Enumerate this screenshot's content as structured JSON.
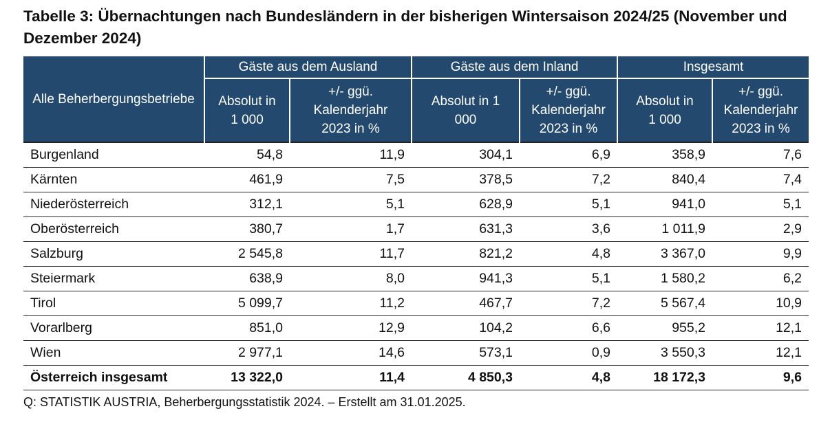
{
  "title": "Tabelle 3: Übernachtungen nach Bundesländern in der bisherigen Wintersaison 2024/25 (November und Dezember 2024)",
  "header": {
    "row_label": "Alle Beherbergungsbetriebe",
    "groups": [
      "Gäste aus dem Ausland",
      "Gäste aus dem Inland",
      "Insgesamt"
    ],
    "col_abs": "Absolut in 1 000",
    "col_pct": "+/- ggü. Kalenderjahr 2023 in %"
  },
  "rows": [
    {
      "name": "Burgenland",
      "values": [
        "54,8",
        "11,9",
        "304,1",
        "6,9",
        "358,9",
        "7,6"
      ]
    },
    {
      "name": "Kärnten",
      "values": [
        "461,9",
        "7,5",
        "378,5",
        "7,2",
        "840,4",
        "7,4"
      ]
    },
    {
      "name": "Niederösterreich",
      "values": [
        "312,1",
        "5,1",
        "628,9",
        "5,1",
        "941,0",
        "5,1"
      ]
    },
    {
      "name": "Oberösterreich",
      "values": [
        "380,7",
        "1,7",
        "631,3",
        "3,6",
        "1 011,9",
        "2,9"
      ]
    },
    {
      "name": "Salzburg",
      "values": [
        "2 545,8",
        "11,7",
        "821,2",
        "4,8",
        "3 367,0",
        "9,9"
      ]
    },
    {
      "name": "Steiermark",
      "values": [
        "638,9",
        "8,0",
        "941,3",
        "5,1",
        "1 580,2",
        "6,2"
      ]
    },
    {
      "name": "Tirol",
      "values": [
        "5 099,7",
        "11,2",
        "467,7",
        "7,2",
        "5 567,4",
        "10,9"
      ]
    },
    {
      "name": "Vorarlberg",
      "values": [
        "851,0",
        "12,9",
        "104,2",
        "6,6",
        "955,2",
        "12,1"
      ]
    },
    {
      "name": "Wien",
      "values": [
        "2 977,1",
        "14,6",
        "573,1",
        "0,9",
        "3 550,3",
        "12,1"
      ]
    }
  ],
  "total": {
    "name": "Österreich insgesamt",
    "values": [
      "13 322,0",
      "11,4",
      "4 850,3",
      "4,8",
      "18 172,3",
      "9,6"
    ]
  },
  "source": "Q: STATISTIK AUSTRIA, Beherbergungsstatistik 2024. – Erstellt am 31.01.2025."
}
